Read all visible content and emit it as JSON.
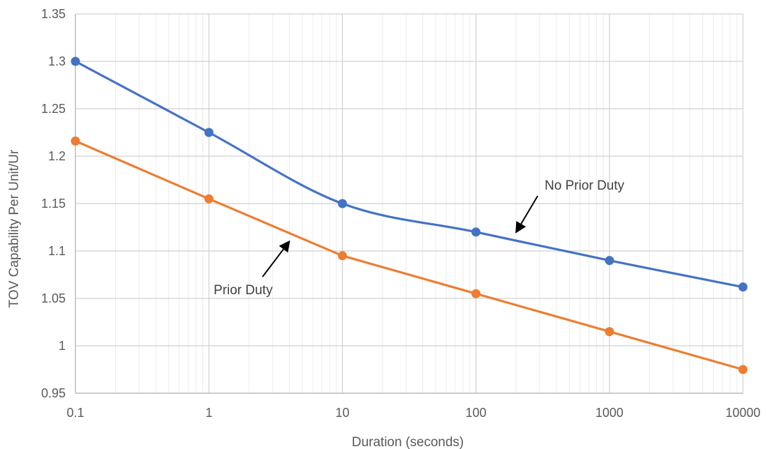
{
  "chart_data": {
    "type": "line",
    "title": "",
    "xlabel": "Duration (seconds)",
    "ylabel": "TOV Capability Per Unit/Ur",
    "x_scale": "log",
    "x": [
      0.1,
      1,
      10,
      100,
      1000,
      10000
    ],
    "x_tick_labels": [
      "0.1",
      "1",
      "10",
      "100",
      "1000",
      "10000"
    ],
    "y_ticks": [
      0.95,
      1,
      1.05,
      1.1,
      1.15,
      1.2,
      1.25,
      1.3,
      1.35
    ],
    "y_tick_labels": [
      "0.95",
      "1",
      "1.05",
      "1.1",
      "1.15",
      "1.2",
      "1.25",
      "1.3",
      "1.35"
    ],
    "xlim": [
      0.1,
      10000
    ],
    "ylim": [
      0.95,
      1.35
    ],
    "grid": true,
    "minor_grid": true,
    "legend": "none",
    "series": [
      {
        "values": [
          1.3,
          1.225,
          1.15,
          1.12,
          1.09,
          1.062
        ],
        "color": "#4472C4",
        "smooth": true
      },
      {
        "values": [
          1.216,
          1.155,
          1.095,
          1.055,
          1.015,
          0.975
        ],
        "color": "#ED7D31",
        "smooth": false
      }
    ],
    "annotations": [
      {
        "text": "No Prior Duty",
        "series_index": 0
      },
      {
        "text": "Prior Duty",
        "series_index": 1
      }
    ]
  }
}
